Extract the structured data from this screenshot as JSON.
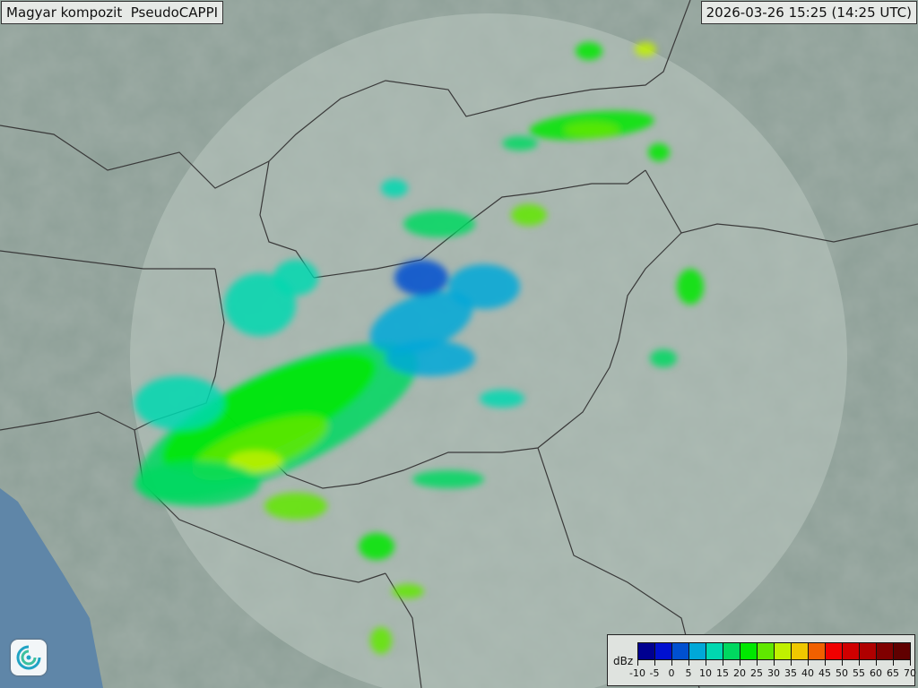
{
  "header": {
    "title": "Magyar kompozit  PseudoCAPPI",
    "timestamp": "2026-03-26 15:25 (14:25 UTC)"
  },
  "legend": {
    "unit": "dBz",
    "ticks": [
      "-10",
      "-5",
      "0",
      "5",
      "10",
      "15",
      "20",
      "25",
      "30",
      "35",
      "40",
      "45",
      "50",
      "55",
      "60",
      "65",
      "70"
    ],
    "colors": [
      "#000090",
      "#0010d0",
      "#0050d0",
      "#00a8d8",
      "#00d8b0",
      "#00d860",
      "#00e800",
      "#60e800",
      "#c0f000",
      "#f0c800",
      "#f06000",
      "#f00000",
      "#d00000",
      "#b00000",
      "#800000",
      "#600000"
    ]
  },
  "map": {
    "background_color": "#8d9f97",
    "coverage_color": "#b9c7c0",
    "border_color": "#3a3a3a",
    "water_color": "#5f86a8"
  },
  "logo": {
    "icon": "swirl-logo-icon"
  }
}
